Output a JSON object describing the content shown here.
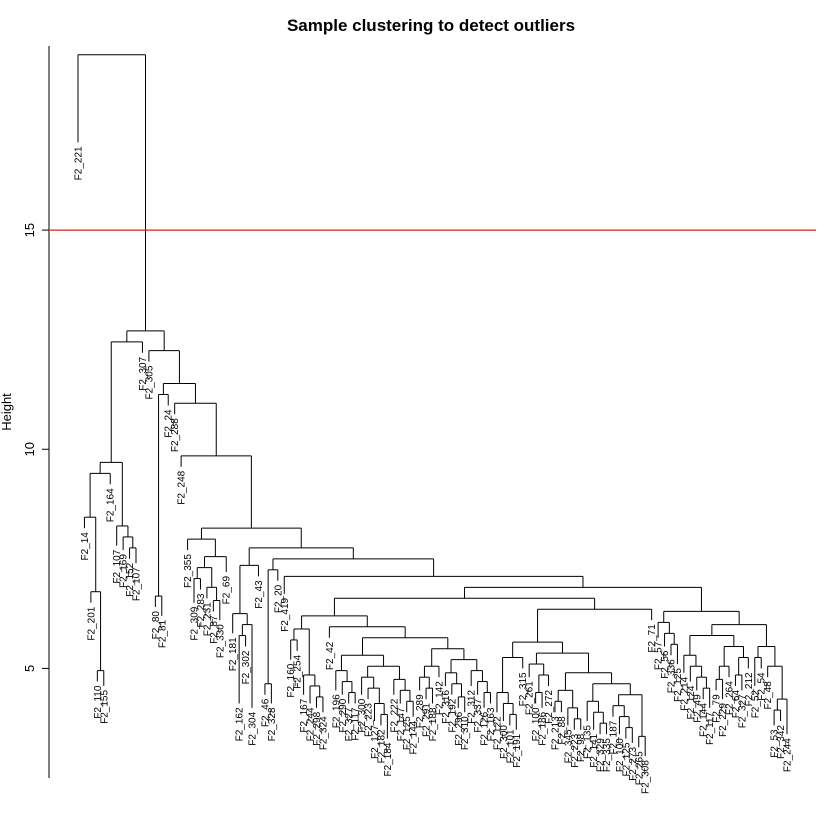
{
  "chart_data": {
    "type": "dendrogram",
    "title": "Sample clustering to detect outliers",
    "xlabel": "",
    "ylabel": "Height",
    "ylim": [
      2.5,
      19.2
    ],
    "yticks": [
      5,
      10,
      15
    ],
    "cut_height": 15,
    "cut_line_color": "#e41a1c",
    "grid": false,
    "leaves": [
      {
        "label": "F2_221",
        "h": 17.0
      },
      {
        "label": "F2_14",
        "h": 8.2
      },
      {
        "label": "F2_201",
        "h": 6.5
      },
      {
        "label": "F2_110",
        "h": 4.7
      },
      {
        "label": "F2_155",
        "h": 4.6
      },
      {
        "label": "F2_164",
        "h": 9.2
      },
      {
        "label": "F2_107",
        "h": 7.8
      },
      {
        "label": "F2_169",
        "h": 7.7
      },
      {
        "label": "F2_152",
        "h": 7.5
      },
      {
        "label": "F2_107",
        "h": 7.4
      },
      {
        "label": "F2_307",
        "h": 12.2
      },
      {
        "label": "F2_305",
        "h": 12.0
      },
      {
        "label": "F2_80",
        "h": 6.4
      },
      {
        "label": "F2_81",
        "h": 6.2
      },
      {
        "label": "F2_24",
        "h": 11.0
      },
      {
        "label": "F2_288",
        "h": 10.8
      },
      {
        "label": "F2_248",
        "h": 9.6
      },
      {
        "label": "F2_355",
        "h": 7.7
      },
      {
        "label": "F2_309",
        "h": 6.5
      },
      {
        "label": "F2_283",
        "h": 6.8
      },
      {
        "label": "F2_231",
        "h": 6.6
      },
      {
        "label": "F2_87",
        "h": 6.3
      },
      {
        "label": "F2_330",
        "h": 6.1
      },
      {
        "label": "F2_69",
        "h": 7.2
      },
      {
        "label": "F2_181",
        "h": 5.8
      },
      {
        "label": "F2_162",
        "h": 4.2
      },
      {
        "label": "F2_302",
        "h": 5.5
      },
      {
        "label": "F2_304",
        "h": 4.1
      },
      {
        "label": "F2_43",
        "h": 7.1
      },
      {
        "label": "F2_46",
        "h": 4.4
      },
      {
        "label": "F2_328",
        "h": 4.2
      },
      {
        "label": "F2_20",
        "h": 7.0
      },
      {
        "label": "F2_419",
        "h": 6.7
      },
      {
        "label": "F2_160",
        "h": 5.2
      },
      {
        "label": "F2_254",
        "h": 5.4
      },
      {
        "label": "F2_167",
        "h": 4.4
      },
      {
        "label": "F2_244",
        "h": 4.2
      },
      {
        "label": "F2_298",
        "h": 4.1
      },
      {
        "label": "F2_324",
        "h": 4.0
      },
      {
        "label": "F2_42",
        "h": 5.7
      },
      {
        "label": "F2_196",
        "h": 4.5
      },
      {
        "label": "F2_290",
        "h": 4.4
      },
      {
        "label": "F2_327",
        "h": 4.2
      },
      {
        "label": "F2_117",
        "h": 4.2
      },
      {
        "label": "F2_300",
        "h": 4.4
      },
      {
        "label": "F2_223",
        "h": 4.3
      },
      {
        "label": "F2_127",
        "h": 3.8
      },
      {
        "label": "F2_182",
        "h": 3.7
      },
      {
        "label": "F2_184",
        "h": 3.4
      },
      {
        "label": "F2_222",
        "h": 4.4
      },
      {
        "label": "F2_147",
        "h": 4.2
      },
      {
        "label": "F2_125",
        "h": 4.0
      },
      {
        "label": "F2_144",
        "h": 3.9
      },
      {
        "label": "F2_289",
        "h": 4.5
      },
      {
        "label": "F2_291",
        "h": 4.3
      },
      {
        "label": "F2_188",
        "h": 4.2
      },
      {
        "label": "F2_142",
        "h": 4.8
      },
      {
        "label": "F2_316",
        "h": 4.6
      },
      {
        "label": "F2_192",
        "h": 4.4
      },
      {
        "label": "F2_296",
        "h": 4.1
      },
      {
        "label": "F2_310",
        "h": 4.0
      },
      {
        "label": "F2_312",
        "h": 4.6
      },
      {
        "label": "F2_337",
        "h": 4.4
      },
      {
        "label": "F2_126",
        "h": 4.1
      },
      {
        "label": "F2_163",
        "h": 4.2
      },
      {
        "label": "F2_122",
        "h": 4.0
      },
      {
        "label": "F2_300",
        "h": 3.8
      },
      {
        "label": "F2_101",
        "h": 3.7
      },
      {
        "label": "F2_191",
        "h": 3.6
      },
      {
        "label": "F2_315",
        "h": 5.0
      },
      {
        "label": "F2_261",
        "h": 4.8
      },
      {
        "label": "F2_100",
        "h": 4.2
      },
      {
        "label": "F2_186",
        "h": 4.1
      },
      {
        "label": "F2_272",
        "h": 4.6
      },
      {
        "label": "F2_213",
        "h": 4.0
      },
      {
        "label": "F2_88",
        "h": 4.0
      },
      {
        "label": "F2_345",
        "h": 3.7
      },
      {
        "label": "F2_223",
        "h": 3.6
      },
      {
        "label": "F2_98",
        "h": 3.6
      },
      {
        "label": "F2_135",
        "h": 3.8
      },
      {
        "label": "F2_141",
        "h": 3.6
      },
      {
        "label": "F2_329",
        "h": 3.5
      },
      {
        "label": "F2_335",
        "h": 3.5
      },
      {
        "label": "F2_187",
        "h": 3.9
      },
      {
        "label": "F2_100",
        "h": 3.5
      },
      {
        "label": "F2_125",
        "h": 3.4
      },
      {
        "label": "F2_273",
        "h": 3.3
      },
      {
        "label": "F2_265",
        "h": 3.2
      },
      {
        "label": "F2_308",
        "h": 3.0
      },
      {
        "label": "F2_71",
        "h": 6.1
      },
      {
        "label": "F2_57",
        "h": 5.7
      },
      {
        "label": "F2_56",
        "h": 5.5
      },
      {
        "label": "F2_336",
        "h": 5.3
      },
      {
        "label": "F2_125",
        "h": 5.1
      },
      {
        "label": "F2_214",
        "h": 4.9
      },
      {
        "label": "F2_124",
        "h": 4.7
      },
      {
        "label": "F2_49",
        "h": 4.5
      },
      {
        "label": "F2_144",
        "h": 4.3
      },
      {
        "label": "F2_117",
        "h": 4.1
      },
      {
        "label": "F2_79",
        "h": 4.5
      },
      {
        "label": "F2_229",
        "h": 4.3
      },
      {
        "label": "F2_264",
        "h": 4.8
      },
      {
        "label": "F2_64",
        "h": 4.6
      },
      {
        "label": "F2_327",
        "h": 4.5
      },
      {
        "label": "F2_212",
        "h": 5.0
      },
      {
        "label": "F2_52",
        "h": 4.6
      },
      {
        "label": "F2_54",
        "h": 5.0
      },
      {
        "label": "F2_48",
        "h": 4.8
      },
      {
        "label": "F2_53",
        "h": 3.7
      },
      {
        "label": "F2_342",
        "h": 3.8
      },
      {
        "label": "F2_244",
        "h": 3.5
      }
    ]
  }
}
